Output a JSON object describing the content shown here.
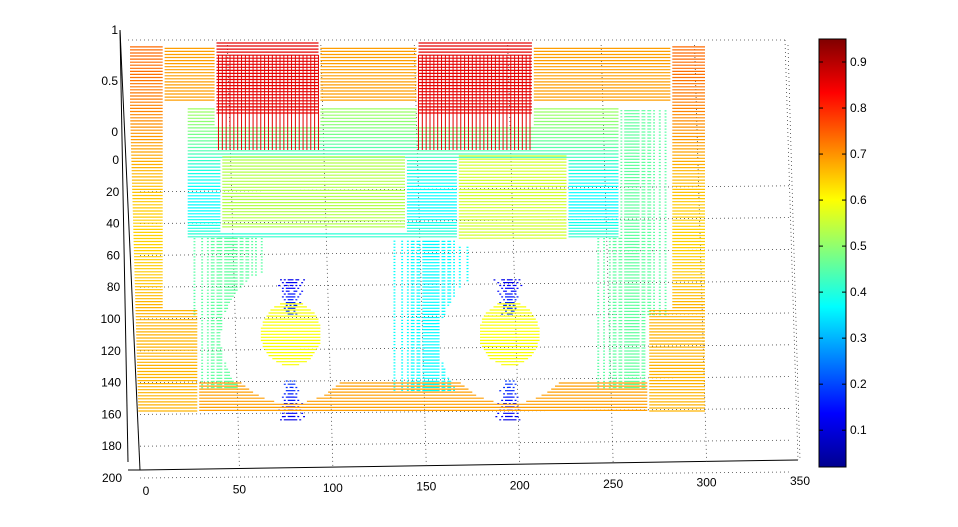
{
  "chart_data": {
    "type": "surface",
    "title": "",
    "xlabel": "",
    "ylabel": "",
    "zlabel": "",
    "xlim": [
      0,
      350
    ],
    "ylim": [
      0,
      200
    ],
    "zlim": [
      0,
      1
    ],
    "x_ticks": [
      "0",
      "50",
      "100",
      "150",
      "200",
      "250",
      "300",
      "350"
    ],
    "y_ticks": [
      "0",
      "20",
      "40",
      "60",
      "80",
      "100",
      "120",
      "140",
      "160",
      "180",
      "200"
    ],
    "z_ticks": [
      "0",
      "0.5",
      "1"
    ],
    "grid": true,
    "colormap": "jet",
    "colorbar": {
      "location": "right",
      "range": [
        0.02,
        0.95
      ],
      "ticks": [
        "0.1",
        "0.2",
        "0.3",
        "0.4",
        "0.5",
        "0.6",
        "0.7",
        "0.8",
        "0.9"
      ]
    },
    "surface_depicts": "depth map of a toy car seen from the side (two wheels, cabin with windows)",
    "surface_extent": {
      "x": [
        0,
        300
      ],
      "y": [
        0,
        160
      ]
    }
  }
}
